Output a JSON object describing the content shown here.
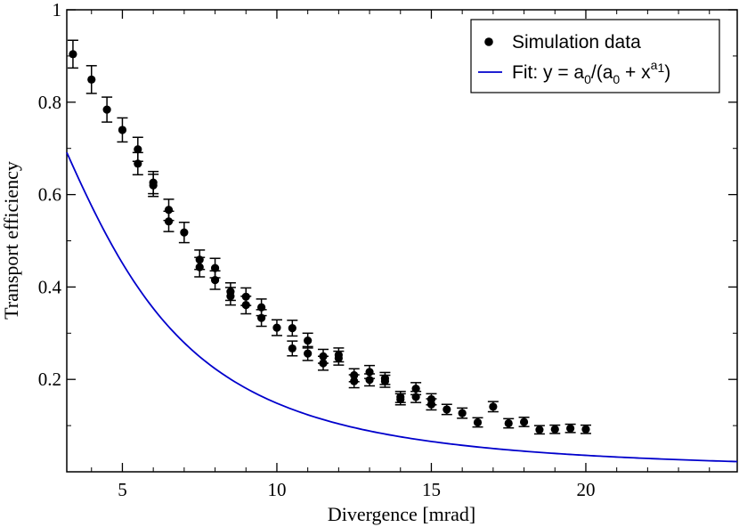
{
  "chart_data": {
    "type": "scatter",
    "title": "",
    "xlabel": "Divergence [mrad]",
    "ylabel": "Transport efficiency",
    "xlim": [
      3.2,
      24.9
    ],
    "ylim": [
      0.0,
      1.0
    ],
    "xticks": [
      5,
      10,
      15,
      20
    ],
    "xtick_labels": [
      "5",
      "10",
      "15",
      "20"
    ],
    "yticks": [
      0.2,
      0.4,
      0.6,
      0.8,
      1.0
    ],
    "ytick_labels": [
      "0.2",
      "0.4",
      "0.6",
      "0.8",
      "1"
    ],
    "grid": false,
    "legend_position": "top-right",
    "colors": {
      "data": "#000000",
      "fit": "#0000cc",
      "axis": "#000000"
    },
    "series": [
      {
        "name": "Simulation data",
        "kind": "points-with-errorbars",
        "x": [
          3.4,
          4.0,
          4.5,
          5.0,
          5.5,
          5.5,
          6.0,
          6.0,
          6.5,
          6.5,
          7.0,
          7.5,
          7.5,
          8.0,
          8.0,
          8.5,
          8.5,
          9.0,
          9.0,
          9.5,
          9.5,
          10.0,
          10.5,
          10.5,
          11.0,
          11.0,
          11.5,
          11.5,
          12.0,
          12.0,
          12.5,
          12.5,
          13.0,
          13.0,
          13.5,
          13.5,
          14.0,
          14.0,
          14.5,
          14.5,
          15.0,
          15.0,
          15.5,
          16.0,
          16.5,
          17.0,
          17.5,
          18.0,
          18.5,
          19.0,
          19.5,
          20.0
        ],
        "y": [
          0.904,
          0.849,
          0.784,
          0.74,
          0.698,
          0.667,
          0.626,
          0.62,
          0.567,
          0.542,
          0.518,
          0.459,
          0.443,
          0.441,
          0.415,
          0.39,
          0.38,
          0.379,
          0.361,
          0.356,
          0.333,
          0.312,
          0.311,
          0.267,
          0.284,
          0.256,
          0.25,
          0.235,
          0.253,
          0.246,
          0.209,
          0.196,
          0.216,
          0.199,
          0.202,
          0.196,
          0.162,
          0.157,
          0.18,
          0.162,
          0.157,
          0.146,
          0.135,
          0.127,
          0.107,
          0.141,
          0.105,
          0.108,
          0.091,
          0.092,
          0.094,
          0.092
        ],
        "yerr": [
          0.03,
          0.03,
          0.027,
          0.026,
          0.026,
          0.024,
          0.024,
          0.024,
          0.023,
          0.022,
          0.022,
          0.021,
          0.021,
          0.021,
          0.02,
          0.019,
          0.019,
          0.019,
          0.019,
          0.018,
          0.018,
          0.017,
          0.017,
          0.016,
          0.016,
          0.015,
          0.015,
          0.015,
          0.015,
          0.015,
          0.014,
          0.014,
          0.014,
          0.013,
          0.013,
          0.013,
          0.012,
          0.012,
          0.013,
          0.012,
          0.012,
          0.012,
          0.011,
          0.011,
          0.01,
          0.011,
          0.01,
          0.01,
          0.009,
          0.009,
          0.009,
          0.009
        ]
      },
      {
        "name": "Fit: y = a0/(a0 + x^a1)",
        "kind": "line",
        "function": "a0/(a0+x^a1)",
        "a0": 30.3,
        "a1": 2.24,
        "x_range": [
          3.2,
          24.9
        ]
      }
    ],
    "legend": [
      {
        "label": "Simulation data",
        "type": "marker"
      },
      {
        "label_parts": [
          "Fit: y = a",
          "0",
          "/(a",
          "0",
          " + x",
          "a",
          "1",
          ")"
        ],
        "type": "line"
      }
    ]
  }
}
